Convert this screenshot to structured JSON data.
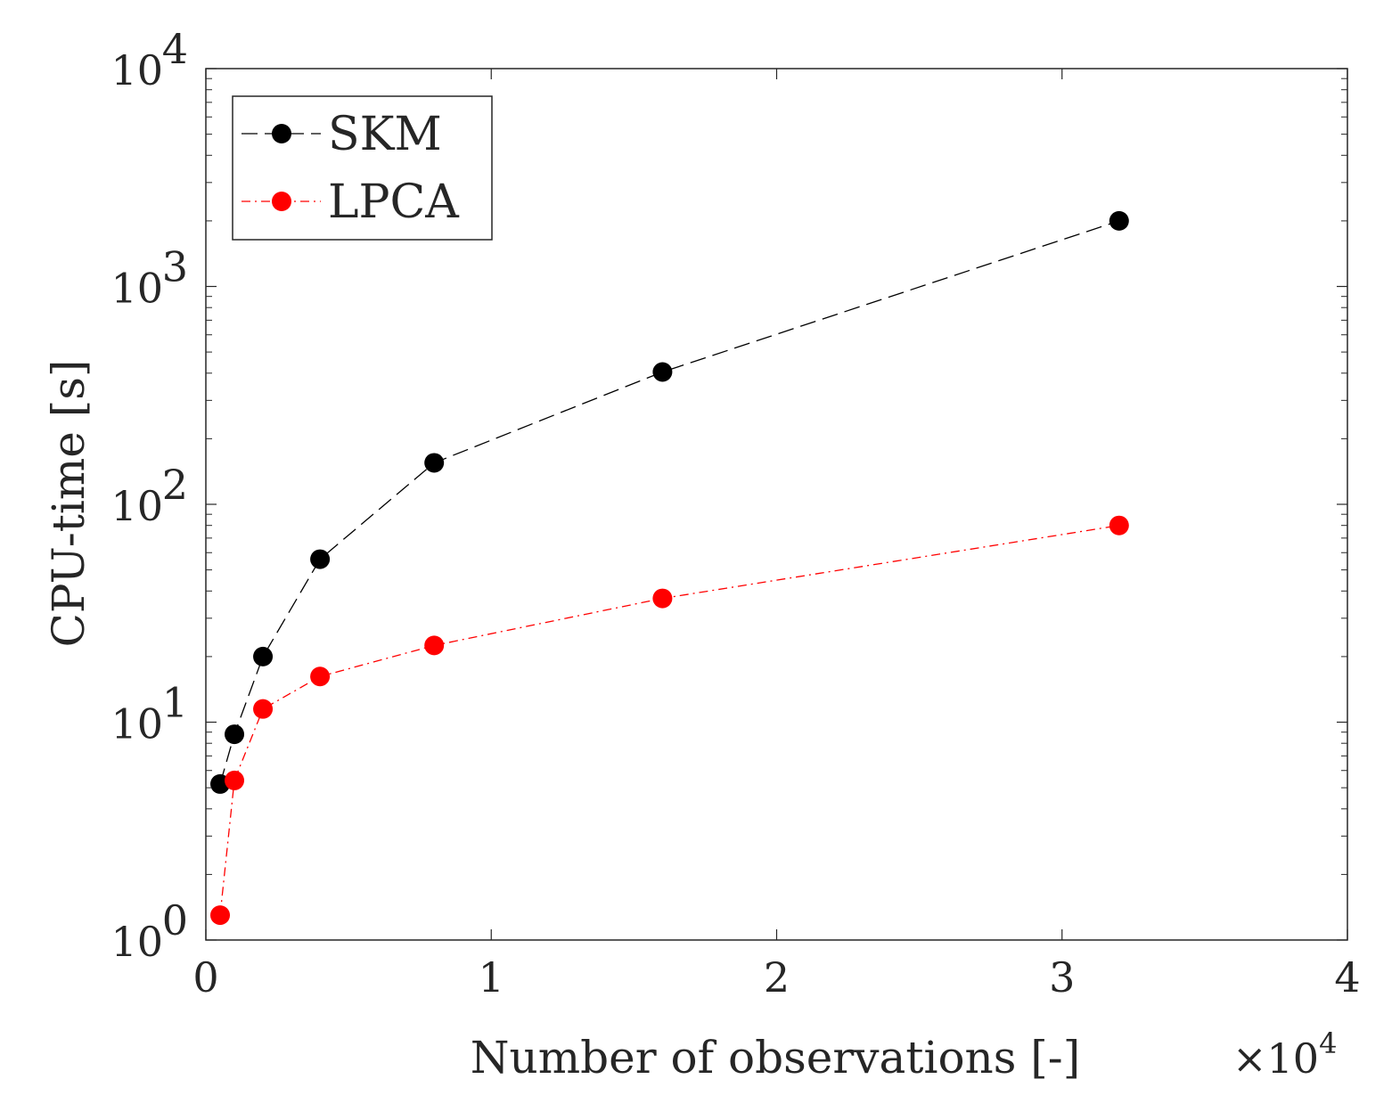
{
  "chart_data": {
    "type": "line",
    "title": "",
    "xlabel": "Number of observations [-]",
    "ylabel": "CPU-time [s]",
    "x_multiplier_label": "×10",
    "x_multiplier_exponent": "4",
    "x_scale": "linear",
    "y_scale": "log",
    "xlim": [
      0,
      4
    ],
    "ylim": [
      1,
      10000
    ],
    "x_ticks": [
      0,
      1,
      2,
      3,
      4
    ],
    "x_tick_labels": [
      "0",
      "1",
      "2",
      "3",
      "4"
    ],
    "y_ticks": [
      1,
      10,
      100,
      1000,
      10000
    ],
    "y_tick_labels": [
      {
        "base": "10",
        "exp": "0"
      },
      {
        "base": "10",
        "exp": "1"
      },
      {
        "base": "10",
        "exp": "2"
      },
      {
        "base": "10",
        "exp": "3"
      },
      {
        "base": "10",
        "exp": "4"
      }
    ],
    "grid": false,
    "legend_position": "top-left",
    "series": [
      {
        "name": "SKM",
        "color": "#000000",
        "line_style": "dashed",
        "x": [
          0.05,
          0.1,
          0.2,
          0.4,
          0.8,
          1.6,
          3.2
        ],
        "y": [
          5.2,
          8.8,
          20,
          56,
          155,
          405,
          2000
        ]
      },
      {
        "name": "LPCA",
        "color": "#ff0000",
        "line_style": "dash-dot",
        "x": [
          0.05,
          0.1,
          0.2,
          0.4,
          0.8,
          1.6,
          3.2
        ],
        "y": [
          1.3,
          5.4,
          11.5,
          16.2,
          22.5,
          37,
          80
        ]
      }
    ]
  }
}
